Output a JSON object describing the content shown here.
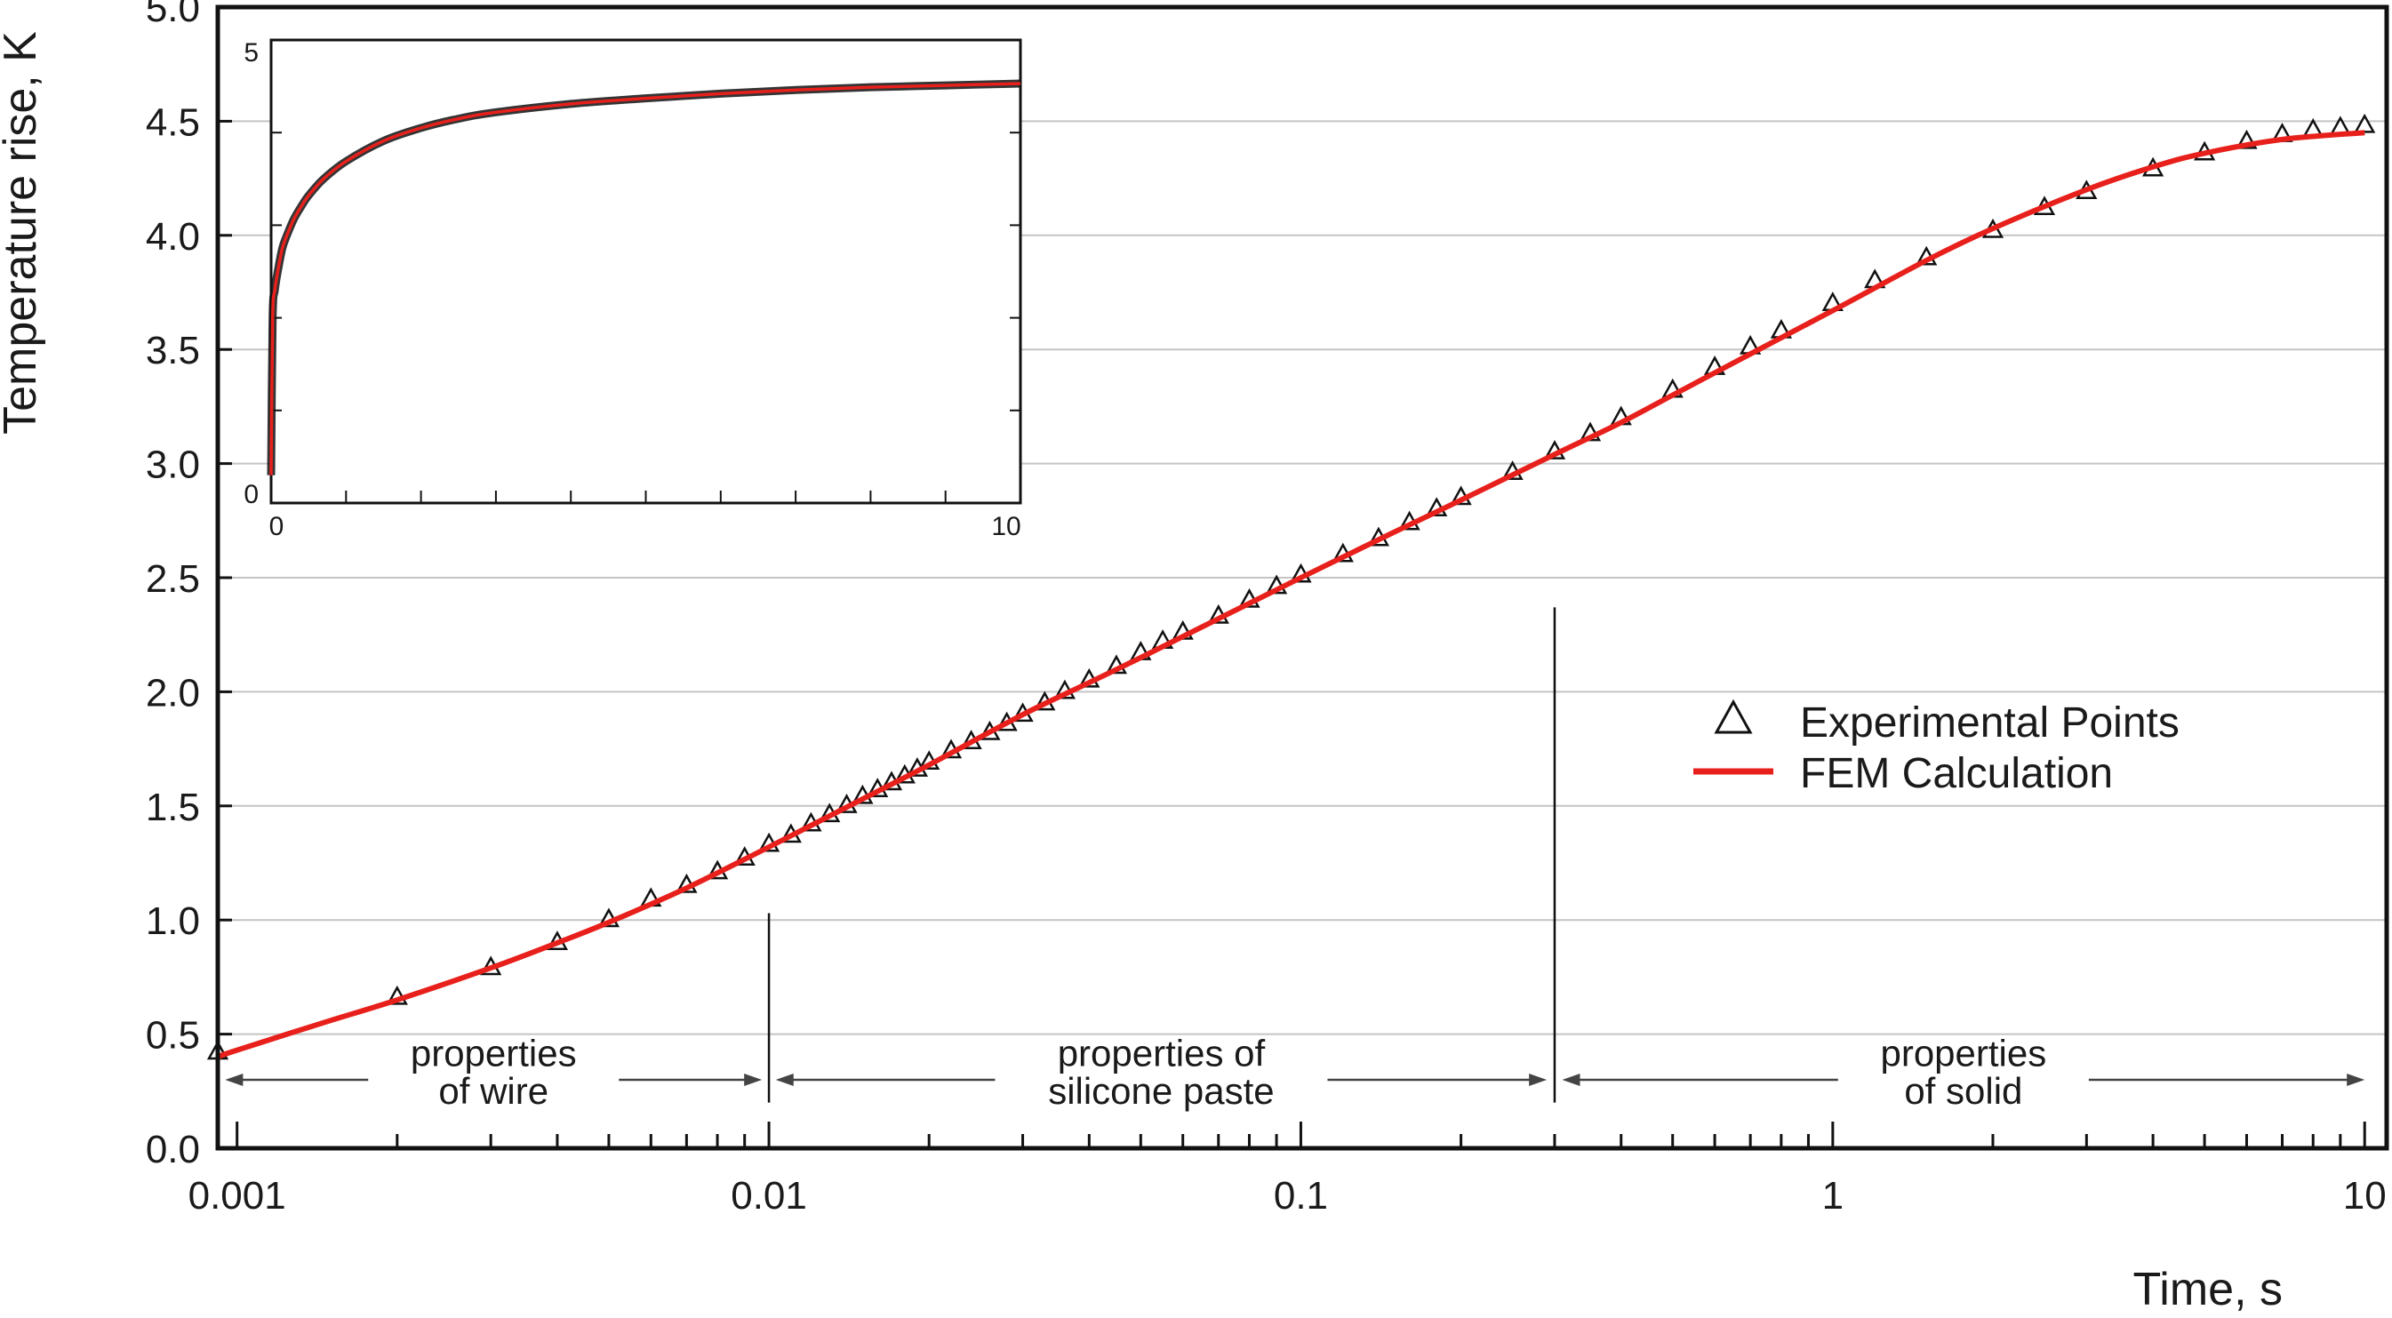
{
  "chart_data": [
    {
      "type": "line",
      "xscale": "log",
      "xlabel": "Time, s",
      "ylabel": "Temperature rise, K",
      "xlim": [
        0.00092,
        11
      ],
      "ylim": [
        0,
        5
      ],
      "x_tick_labels": [
        "0.001",
        "0.01",
        "0.1",
        "1",
        "10"
      ],
      "x_tick_values": [
        0.001,
        0.01,
        0.1,
        1,
        10
      ],
      "y_tick_labels": [
        "0.0",
        "0.5",
        "1.0",
        "1.5",
        "2.0",
        "2.5",
        "3.0",
        "3.5",
        "4.0",
        "4.5",
        "5.0"
      ],
      "y_tick_values": [
        0,
        0.5,
        1,
        1.5,
        2,
        2.5,
        3,
        3.5,
        4,
        4.5,
        5
      ],
      "grid": "horizontal",
      "legend_position": "center-right",
      "series": [
        {
          "name": "Experimental Points",
          "marker": "triangle",
          "color": "#111111",
          "x": [
            0.00092,
            0.002,
            0.003,
            0.004,
            0.005,
            0.006,
            0.007,
            0.008,
            0.009,
            0.01,
            0.011,
            0.012,
            0.013,
            0.014,
            0.015,
            0.016,
            0.017,
            0.018,
            0.019,
            0.02,
            0.022,
            0.024,
            0.026,
            0.028,
            0.03,
            0.033,
            0.036,
            0.04,
            0.045,
            0.05,
            0.055,
            0.06,
            0.07,
            0.08,
            0.09,
            0.1,
            0.12,
            0.14,
            0.16,
            0.18,
            0.2,
            0.25,
            0.3,
            0.35,
            0.4,
            0.5,
            0.6,
            0.7,
            0.8,
            1,
            1.2,
            1.5,
            2,
            2.5,
            3,
            4,
            5,
            6,
            7,
            8,
            9,
            10
          ],
          "y": [
            0.42,
            0.66,
            0.79,
            0.9,
            1.0,
            1.09,
            1.15,
            1.21,
            1.27,
            1.33,
            1.37,
            1.42,
            1.46,
            1.5,
            1.54,
            1.57,
            1.6,
            1.63,
            1.66,
            1.69,
            1.74,
            1.78,
            1.82,
            1.86,
            1.9,
            1.95,
            2.0,
            2.05,
            2.11,
            2.17,
            2.22,
            2.26,
            2.33,
            2.4,
            2.46,
            2.51,
            2.6,
            2.67,
            2.74,
            2.8,
            2.85,
            2.96,
            3.05,
            3.13,
            3.2,
            3.32,
            3.42,
            3.51,
            3.58,
            3.7,
            3.8,
            3.9,
            4.02,
            4.12,
            4.19,
            4.29,
            4.36,
            4.41,
            4.44,
            4.46,
            4.47,
            4.48
          ]
        },
        {
          "name": "FEM Calculation",
          "color": "#e8201c",
          "x": [
            0.00092,
            0.001,
            0.0015,
            0.002,
            0.003,
            0.004,
            0.005,
            0.007,
            0.01,
            0.015,
            0.02,
            0.03,
            0.04,
            0.05,
            0.07,
            0.1,
            0.15,
            0.2,
            0.3,
            0.4,
            0.5,
            0.7,
            1,
            1.5,
            2,
            3,
            4,
            5,
            7,
            10
          ],
          "y": [
            0.4,
            0.43,
            0.56,
            0.65,
            0.79,
            0.9,
            0.99,
            1.14,
            1.32,
            1.53,
            1.68,
            1.9,
            2.04,
            2.15,
            2.32,
            2.5,
            2.7,
            2.84,
            3.04,
            3.18,
            3.3,
            3.48,
            3.67,
            3.89,
            4.03,
            4.2,
            4.3,
            4.36,
            4.42,
            4.45
          ]
        }
      ],
      "regions": [
        {
          "label_lines": [
            "properties",
            "of wire"
          ],
          "from": 0.00095,
          "to": 0.0097
        },
        {
          "label_lines": [
            "properties of",
            "silicone paste"
          ],
          "from": 0.0103,
          "to": 0.29
        },
        {
          "label_lines": [
            "properties",
            "of solid"
          ],
          "from": 0.31,
          "to": 10
        }
      ],
      "dividers": [
        {
          "x": 0.01,
          "y_from": 0.2,
          "y_to": 1.03
        },
        {
          "x": 0.3,
          "y_from": 0.2,
          "y_to": 2.37
        }
      ]
    },
    {
      "type": "line",
      "position": "inset-top-left",
      "xscale": "linear",
      "xlim": [
        0,
        10
      ],
      "ylim": [
        0,
        5
      ],
      "x_tick_labels": [
        "0",
        "10"
      ],
      "x_tick_values": [
        0,
        10
      ],
      "y_tick_labels": [
        "0",
        "5"
      ],
      "y_tick_values": [
        0,
        5
      ],
      "series": [
        {
          "name": "Experimental Points",
          "color": "#111111",
          "x": [
            0,
            0.02,
            0.05,
            0.1,
            0.15,
            0.2,
            0.3,
            0.4,
            0.5,
            0.7,
            1,
            1.5,
            2,
            2.5,
            3,
            4,
            5,
            6,
            7,
            8,
            9,
            10
          ],
          "y": [
            0.3,
            2.0,
            2.3,
            2.55,
            2.75,
            2.87,
            3.06,
            3.2,
            3.32,
            3.5,
            3.69,
            3.91,
            4.05,
            4.15,
            4.22,
            4.31,
            4.37,
            4.42,
            4.46,
            4.49,
            4.51,
            4.53
          ]
        },
        {
          "name": "FEM Calculation",
          "color": "#e8201c",
          "x": [
            0,
            0.02,
            0.05,
            0.1,
            0.15,
            0.2,
            0.3,
            0.4,
            0.5,
            0.7,
            1,
            1.5,
            2,
            2.5,
            3,
            4,
            5,
            6,
            7,
            8,
            9,
            10
          ],
          "y": [
            0.3,
            2.0,
            2.3,
            2.55,
            2.75,
            2.87,
            3.06,
            3.2,
            3.32,
            3.5,
            3.69,
            3.91,
            4.05,
            4.15,
            4.22,
            4.31,
            4.37,
            4.42,
            4.46,
            4.49,
            4.51,
            4.53
          ]
        }
      ]
    }
  ]
}
